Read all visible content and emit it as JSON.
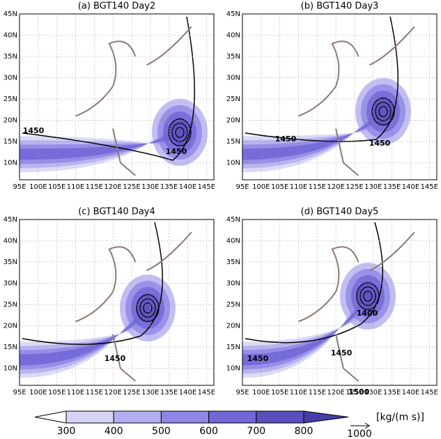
{
  "panels": [
    {
      "title": "(a) BGT140 Day2",
      "contour_labels": [
        "1450",
        "1450"
      ]
    },
    {
      "title": "(b) BGT140 Day3",
      "contour_labels": [
        "1450",
        "1450"
      ]
    },
    {
      "title": "(c) BGT140 Day4",
      "contour_labels": [
        "1450"
      ]
    },
    {
      "title": "(d) BGT140 Day5",
      "contour_labels": [
        "1450",
        "1450",
        "1400",
        "1500"
      ]
    }
  ],
  "lon_ticks": [
    "95E",
    "100E",
    "105E",
    "110E",
    "115E",
    "120E",
    "125E",
    "130E",
    "135E",
    "140E",
    "145E"
  ],
  "lat_ticks": [
    "10N",
    "15N",
    "20N",
    "25N",
    "30N",
    "35N",
    "40N",
    "45N"
  ],
  "colorbar": {
    "levels": [
      "300",
      "400",
      "500",
      "600",
      "700",
      "800"
    ],
    "unit": "[kg/(m s)]",
    "reference_vector": "1000"
  }
}
